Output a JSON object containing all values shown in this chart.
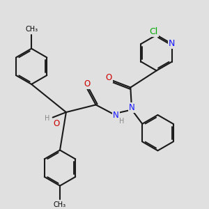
{
  "bg_color": "#e0e0e0",
  "bond_color": "#1a1a1a",
  "bond_width": 1.5,
  "atom_colors": {
    "C": "#000000",
    "N": "#1414ff",
    "O": "#cc0000",
    "Cl": "#00aa00",
    "H": "#888888"
  },
  "font_size": 8.5,
  "fig_size": [
    3.0,
    3.0
  ],
  "dpi": 100
}
